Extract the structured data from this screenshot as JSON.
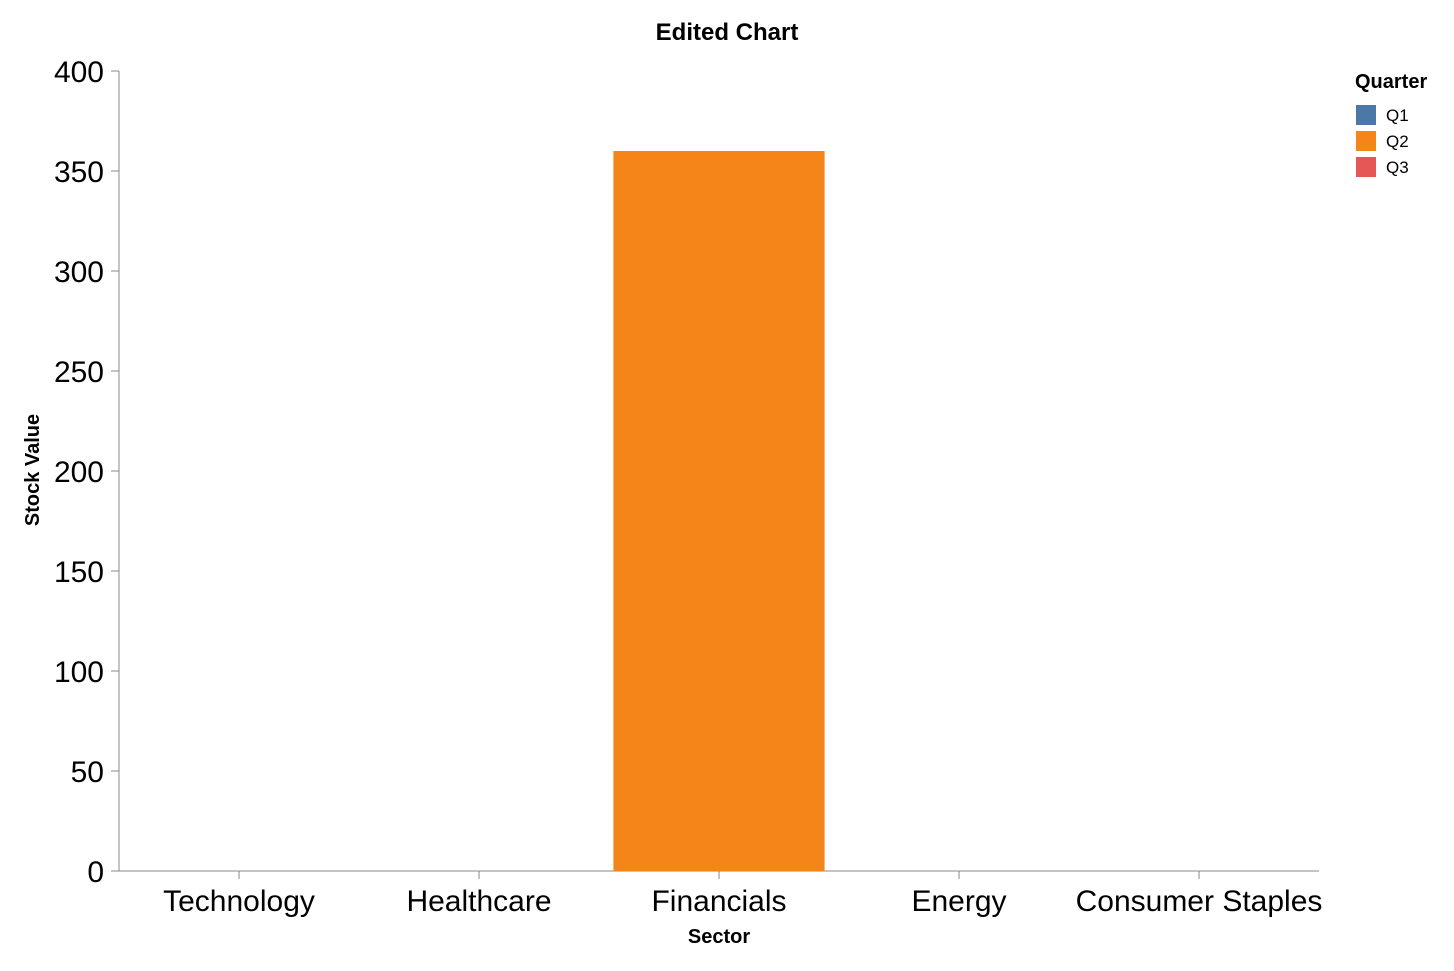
{
  "chart_data": {
    "type": "bar",
    "title": "Edited Chart",
    "xlabel": "Sector",
    "ylabel": "Stock Value",
    "categories": [
      "Technology",
      "Healthcare",
      "Financials",
      "Energy",
      "Consumer Staples"
    ],
    "yticks": [
      "0",
      "50",
      "100",
      "150",
      "200",
      "250",
      "300",
      "350",
      "400"
    ],
    "ylim": [
      0,
      400
    ],
    "grid": false,
    "legend": {
      "title": "Quarter",
      "placement": "top-right",
      "items": [
        {
          "name": "Q1",
          "color": "#4c78a8"
        },
        {
          "name": "Q2",
          "color": "#f58518"
        },
        {
          "name": "Q3",
          "color": "#e45756"
        }
      ]
    },
    "series": [
      {
        "name": "Q1",
        "color": "#4c78a8",
        "values": [
          0,
          0,
          0,
          0,
          0
        ]
      },
      {
        "name": "Q2",
        "color": "#f58518",
        "values": [
          0,
          0,
          360,
          0,
          0
        ]
      },
      {
        "name": "Q3",
        "color": "#e45756",
        "values": [
          0,
          0,
          0,
          0,
          0
        ]
      }
    ]
  }
}
